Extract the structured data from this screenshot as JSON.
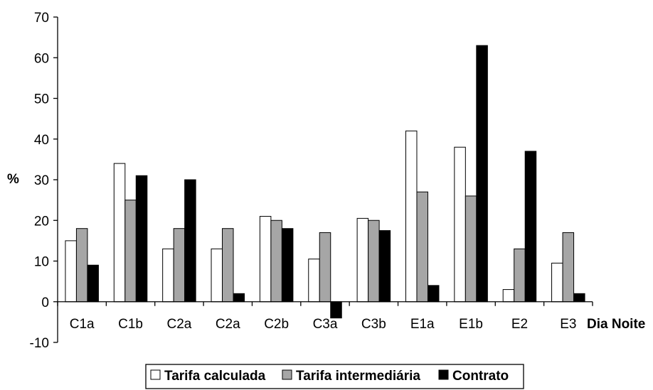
{
  "chart_data": {
    "type": "bar",
    "title": "",
    "xlabel": "Dia Noite",
    "ylabel": "%",
    "ylim": [
      -10,
      70
    ],
    "yticks": [
      -10,
      0,
      10,
      20,
      30,
      40,
      50,
      60,
      70
    ],
    "categories": [
      "C1a",
      "C1b",
      "C2a",
      "C2a",
      "C2b",
      "C3a",
      "C3b",
      "E1a",
      "E1b",
      "E2",
      "E3"
    ],
    "series": [
      {
        "name": "Tarifa calculada",
        "color": "#ffffff",
        "values": [
          15,
          34,
          13,
          13,
          21,
          10.5,
          20.5,
          42,
          38,
          3,
          9.5
        ]
      },
      {
        "name": "Tarifa intermediária",
        "color": "#a6a6a6",
        "values": [
          18,
          25,
          18,
          18,
          20,
          17,
          20,
          27,
          26,
          13,
          17
        ]
      },
      {
        "name": "Contrato",
        "color": "#000000",
        "values": [
          9,
          31,
          30,
          2,
          18,
          -4,
          17.5,
          4,
          63,
          37,
          2
        ]
      }
    ],
    "grid": false,
    "legend_position": "bottom"
  }
}
